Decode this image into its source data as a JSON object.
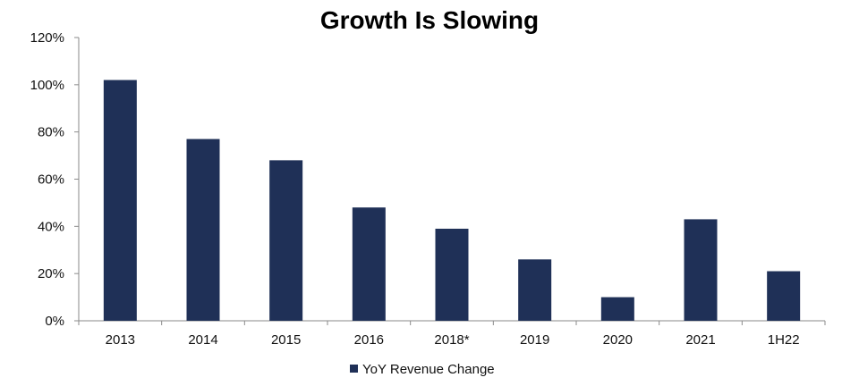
{
  "chart_data": {
    "type": "bar",
    "title": "Growth Is Slowing",
    "xlabel": "",
    "ylabel": "",
    "categories": [
      "2013",
      "2014",
      "2015",
      "2016",
      "2018*",
      "2019",
      "2020",
      "2021",
      "1H22"
    ],
    "series": [
      {
        "name": "YoY Revenue Change",
        "values": [
          102,
          77,
          68,
          48,
          39,
          26,
          10,
          43,
          21
        ],
        "color": "#1f3057"
      }
    ],
    "ylim": [
      0,
      120
    ],
    "yticks": [
      0,
      20,
      40,
      60,
      80,
      100,
      120
    ],
    "ytick_labels": [
      "0%",
      "20%",
      "40%",
      "60%",
      "80%",
      "100%",
      "120%"
    ],
    "grid": false,
    "legend_position": "bottom-center"
  }
}
